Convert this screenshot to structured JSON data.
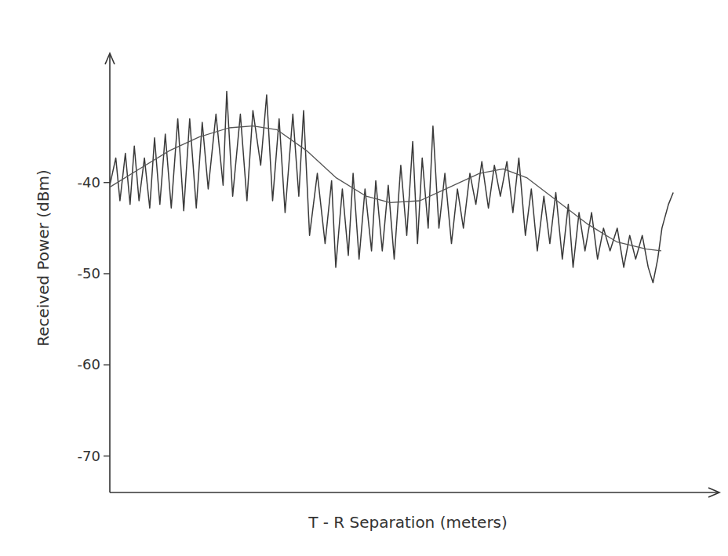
{
  "chart_data": {
    "type": "line",
    "y_label": "Received Power (dBm)",
    "x_label": "T - R Separation (meters)",
    "xlim": [
      0,
      100
    ],
    "xticks": [],
    "ylim": [
      -74,
      -26
    ],
    "yticks": [
      -40,
      -50,
      -60,
      -70
    ],
    "grid": false,
    "tick_labels": "y",
    "series": [
      {
        "color": "#3a3a3a",
        "line_style": "solid",
        "x": [
          0,
          1.0,
          1.7,
          2.6,
          3.4,
          4.1,
          4.9,
          5.8,
          6.7,
          7.5,
          8.4,
          9.3,
          10.3,
          11.4,
          12.4,
          13.4,
          14.5,
          15.5,
          16.5,
          17.8,
          19.0,
          19.6,
          20.6,
          21.9,
          23.0,
          24.0,
          25.3,
          26.3,
          27.3,
          28.4,
          29.4,
          30.7,
          31.7,
          32.5,
          33.5,
          34.8,
          36.1,
          37.2,
          37.9,
          39.0,
          40.0,
          40.8,
          41.8,
          42.8,
          43.9,
          44.6,
          45.7,
          46.7,
          47.7,
          48.8,
          49.8,
          50.8,
          51.6,
          52.4,
          53.4,
          54.2,
          55.2,
          56.2,
          57.3,
          58.3,
          59.3,
          60.4,
          61.4,
          62.4,
          63.5,
          64.5,
          65.5,
          66.6,
          67.6,
          68.6,
          69.7,
          70.7,
          71.7,
          72.8,
          73.8,
          74.8,
          75.9,
          76.9,
          77.7,
          78.7,
          79.7,
          80.8,
          81.8,
          82.8,
          83.9,
          85.1,
          86.2,
          87.2,
          88.2,
          89.3,
          90.3,
          91.1,
          91.9,
          92.6,
          93.7,
          94.5
        ],
        "values": [
          -40.3,
          -37.3,
          -42.0,
          -36.8,
          -42.4,
          -36.0,
          -42.0,
          -37.3,
          -42.8,
          -35.1,
          -42.4,
          -34.7,
          -42.8,
          -33.0,
          -43.1,
          -33.0,
          -42.8,
          -33.4,
          -40.7,
          -32.5,
          -40.3,
          -30.0,
          -41.5,
          -32.5,
          -42.0,
          -32.1,
          -38.1,
          -30.4,
          -42.0,
          -33.0,
          -43.3,
          -32.5,
          -41.5,
          -32.1,
          -45.8,
          -39.0,
          -46.7,
          -39.8,
          -49.3,
          -40.7,
          -48.0,
          -39.0,
          -48.4,
          -40.7,
          -47.5,
          -39.8,
          -47.5,
          -40.3,
          -48.4,
          -38.1,
          -45.8,
          -35.5,
          -46.7,
          -37.3,
          -45.0,
          -33.8,
          -45.0,
          -39.0,
          -46.7,
          -40.7,
          -45.0,
          -39.0,
          -42.4,
          -37.7,
          -42.8,
          -38.1,
          -41.5,
          -37.7,
          -43.3,
          -37.3,
          -45.8,
          -40.7,
          -47.5,
          -41.5,
          -46.7,
          -41.1,
          -48.4,
          -42.4,
          -49.3,
          -43.3,
          -47.5,
          -43.3,
          -48.4,
          -45.0,
          -47.5,
          -45.0,
          -49.3,
          -45.8,
          -48.4,
          -45.8,
          -49.3,
          -51.0,
          -48.4,
          -45.0,
          -42.4,
          -41.1
        ]
      },
      {
        "color": "#555555",
        "line_style": "solid",
        "x": [
          0,
          5,
          10,
          15,
          20,
          24,
          28,
          33,
          38,
          43,
          47,
          52,
          57,
          62,
          66,
          70,
          75,
          80,
          85,
          90,
          92.5
        ],
        "values": [
          -40.5,
          -38.5,
          -36.5,
          -35,
          -34,
          -33.8,
          -34.2,
          -36.5,
          -39.5,
          -41.5,
          -42.2,
          -42,
          -40.5,
          -39,
          -38.5,
          -39.5,
          -42,
          -44.5,
          -46.5,
          -47.3,
          -47.5
        ]
      }
    ]
  }
}
